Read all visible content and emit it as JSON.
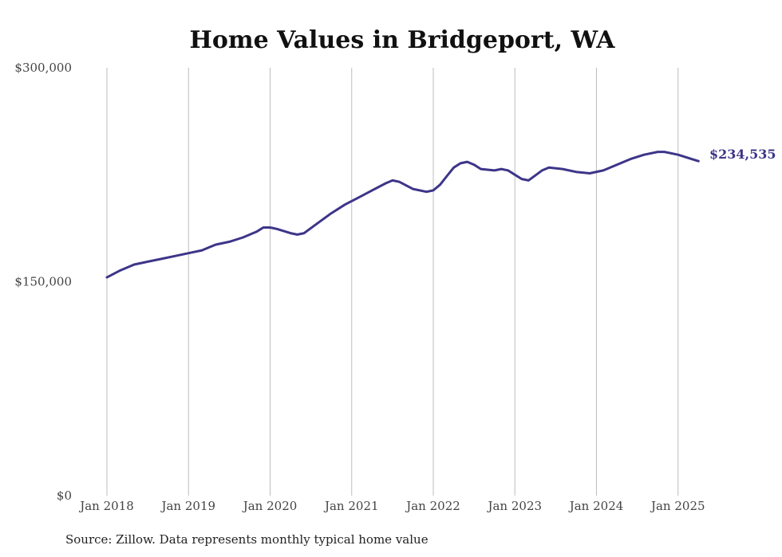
{
  "chart_data": {
    "type": "line",
    "title": "Home Values in Bridgeport, WA",
    "xlabel": "",
    "ylabel": "",
    "ylim": [
      0,
      300000
    ],
    "y_ticks": [
      {
        "value": 0,
        "label": "$0"
      },
      {
        "value": 150000,
        "label": "$150,000"
      },
      {
        "value": 300000,
        "label": "$300,000"
      }
    ],
    "x_range": [
      "2018-01",
      "2025-04"
    ],
    "x_ticks": [
      {
        "date": "2018-01",
        "label": "Jan 2018"
      },
      {
        "date": "2019-01",
        "label": "Jan 2019"
      },
      {
        "date": "2020-01",
        "label": "Jan 2020"
      },
      {
        "date": "2021-01",
        "label": "Jan 2021"
      },
      {
        "date": "2022-01",
        "label": "Jan 2022"
      },
      {
        "date": "2023-01",
        "label": "Jan 2023"
      },
      {
        "date": "2024-01",
        "label": "Jan 2024"
      },
      {
        "date": "2025-01",
        "label": "Jan 2025"
      }
    ],
    "grid": "vertical",
    "line_color": "#3d3589",
    "end_label": "$234,535",
    "series": [
      {
        "x": [
          "2018-01",
          "2018-03",
          "2018-05",
          "2018-07",
          "2018-09",
          "2018-11",
          "2019-01",
          "2019-03",
          "2019-04",
          "2019-05",
          "2019-07",
          "2019-09",
          "2019-11",
          "2019-12",
          "2020-01",
          "2020-02",
          "2020-04",
          "2020-05",
          "2020-06",
          "2020-08",
          "2020-10",
          "2020-12",
          "2021-02",
          "2021-04",
          "2021-06",
          "2021-07",
          "2021-08",
          "2021-10",
          "2021-12",
          "2022-01",
          "2022-02",
          "2022-03",
          "2022-04",
          "2022-05",
          "2022-06",
          "2022-07",
          "2022-08",
          "2022-10",
          "2022-11",
          "2022-12",
          "2023-01",
          "2023-02",
          "2023-03",
          "2023-05",
          "2023-06",
          "2023-08",
          "2023-10",
          "2023-12",
          "2024-02",
          "2024-04",
          "2024-06",
          "2024-08",
          "2024-10",
          "2024-11",
          "2025-01",
          "2025-03",
          "2025-04"
        ],
        "y": [
          153000,
          158000,
          162000,
          164000,
          166000,
          168000,
          170000,
          172000,
          174000,
          176000,
          178000,
          181000,
          185000,
          188000,
          188000,
          187000,
          184000,
          183000,
          184000,
          191000,
          198000,
          204000,
          209000,
          214000,
          219000,
          221000,
          220000,
          215000,
          213000,
          214000,
          218000,
          224000,
          230000,
          233000,
          234000,
          232000,
          229000,
          228000,
          229000,
          228000,
          225000,
          222000,
          221000,
          228000,
          230000,
          229000,
          227000,
          226000,
          228000,
          232000,
          236000,
          239000,
          241000,
          241000,
          239000,
          236000,
          234535
        ]
      }
    ]
  },
  "source_note": "Source: Zillow. Data represents monthly typical home value"
}
